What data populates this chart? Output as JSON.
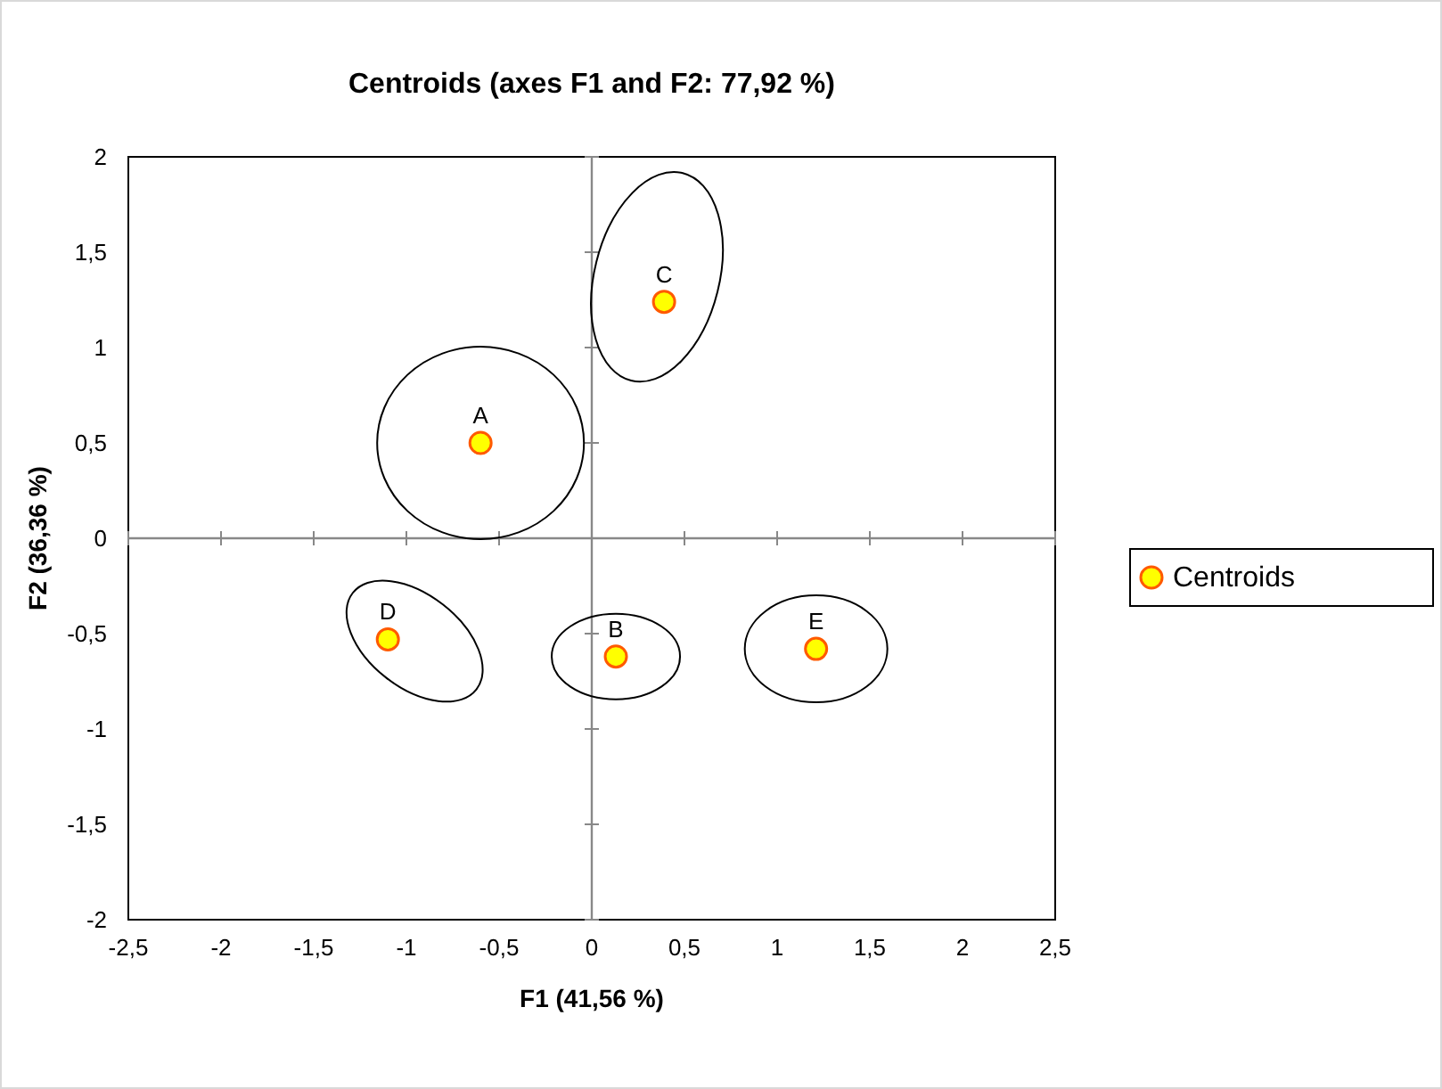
{
  "chart_data": {
    "type": "scatter",
    "title": "Centroids (axes F1 and F2: 77,92 %)",
    "xlabel": "F1 (41,56 %)",
    "ylabel": "F2 (36,36 %)",
    "xlim": [
      -2.5,
      2.5
    ],
    "ylim": [
      -2,
      2
    ],
    "xticks": [
      {
        "value": -2.5,
        "label": "-2,5"
      },
      -2,
      {
        "value": -1.5,
        "label": "-1,5"
      },
      -1,
      {
        "value": -0.5,
        "label": "-0,5"
      },
      0,
      {
        "value": 0.5,
        "label": "0,5"
      },
      1,
      {
        "value": 1.5,
        "label": "1,5"
      },
      2,
      {
        "value": 2.5,
        "label": "2,5"
      }
    ],
    "yticks": [
      -2,
      {
        "value": -1.5,
        "label": "-1,5"
      },
      -1,
      {
        "value": -0.5,
        "label": "-0,5"
      },
      0,
      {
        "value": 0.5,
        "label": "0,5"
      },
      1,
      {
        "value": 1.5,
        "label": "1,5"
      },
      2
    ],
    "legend": "right",
    "marker": "circle",
    "series": [
      {
        "name": "Centroids",
        "color": "#ffff00",
        "x": [
          -0.6,
          0.39,
          -1.1,
          0.13,
          1.21
        ],
        "values": [
          0.5,
          1.24,
          -0.53,
          -0.62,
          -0.58
        ]
      }
    ],
    "annotations": [
      {
        "text": "A",
        "x": -0.6,
        "y": 0.5
      },
      {
        "text": "C",
        "x": 0.39,
        "y": 1.24
      },
      {
        "text": "D",
        "x": -1.1,
        "y": -0.53
      },
      {
        "text": "B",
        "x": 0.13,
        "y": -0.62
      },
      {
        "text": "E",
        "x": 1.21,
        "y": -0.58
      }
    ]
  }
}
